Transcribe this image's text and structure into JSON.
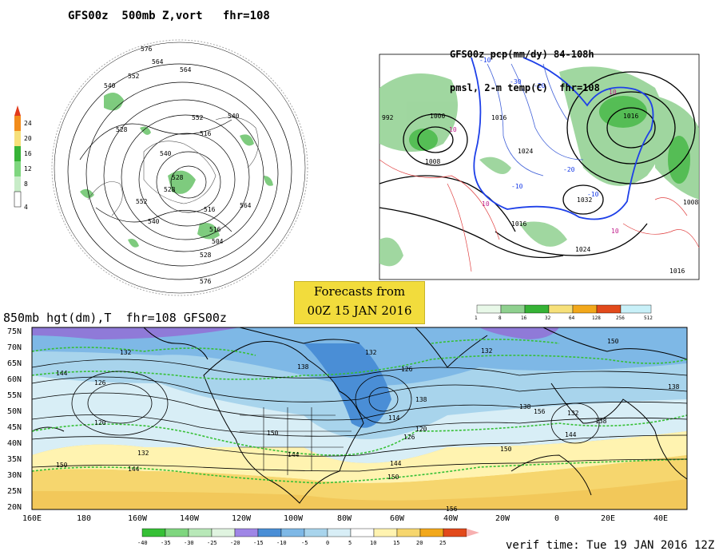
{
  "panel_top_left": {
    "title": "GFS00z  500mb Z,vort   fhr=108",
    "colorbar_labels": [
      "24",
      "20",
      "16",
      "12",
      "8",
      "4"
    ],
    "contour_labels": [
      "576",
      "564",
      "552",
      "540",
      "528",
      "540",
      "552",
      "564",
      "516",
      "540",
      "528",
      "516",
      "504",
      "528",
      "540",
      "552",
      "564",
      "576",
      "516",
      "528"
    ]
  },
  "panel_top_right": {
    "title_line1": "GFS00z pcp(mm/dy) 84-108h",
    "title_line2": "pmsl, 2-m temp(C)  fhr=108",
    "isobar_labels": [
      "992",
      "1000",
      "1008",
      "1016",
      "1024",
      "1032",
      "1016",
      "1024",
      "1016",
      "1008",
      "1016"
    ],
    "temp_labels": [
      "10",
      "-10",
      "-20",
      "-30",
      "-10",
      "-20",
      "10",
      "-10",
      "10",
      "10"
    ],
    "colorbar_labels": [
      "1",
      "8",
      "16",
      "32",
      "64",
      "128",
      "256",
      "512"
    ]
  },
  "forecast_box": {
    "line1": "Forecasts from",
    "line2": "00Z 15 JAN 2016"
  },
  "panel_bottom": {
    "title": "850mb hgt(dm),T  fhr=108 GFS00z",
    "lat_labels": [
      "75N",
      "70N",
      "65N",
      "60N",
      "55N",
      "50N",
      "45N",
      "40N",
      "35N",
      "30N",
      "25N",
      "20N"
    ],
    "lon_labels": [
      "160E",
      "180",
      "160W",
      "140W",
      "120W",
      "100W",
      "80W",
      "60W",
      "40W",
      "20W",
      "0",
      "20E",
      "40E"
    ],
    "contour_labels": [
      "144",
      "132",
      "126",
      "120",
      "132",
      "144",
      "150",
      "132",
      "138",
      "150",
      "144",
      "126",
      "138",
      "114",
      "126",
      "120",
      "144",
      "150",
      "132",
      "138",
      "156",
      "132",
      "138",
      "144",
      "150",
      "156",
      "138",
      "150"
    ],
    "colorbar_labels": [
      "-40",
      "-35",
      "-30",
      "-25",
      "-20",
      "-15",
      "-10",
      "-5",
      "0",
      "5",
      "10",
      "15",
      "20",
      "25"
    ]
  },
  "verif_time": "verif time: Tue 19 JAN 2016 12Z"
}
